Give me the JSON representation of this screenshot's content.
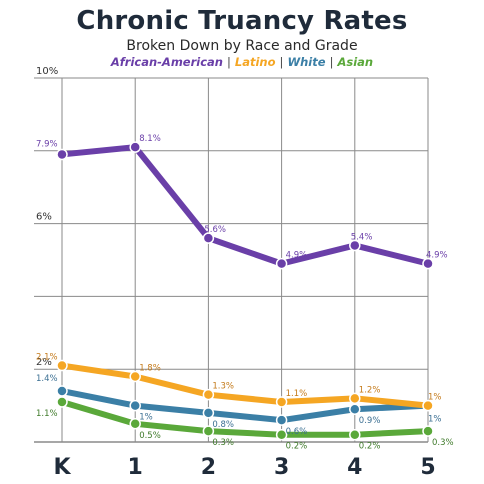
{
  "title": "Chronic Truancy Rates",
  "subtitle": "Broken Down by Race and Grade",
  "legend_separator": "|",
  "chart_data": {
    "type": "line",
    "title": "Chronic Truancy Rates",
    "subtitle": "Broken Down by Race and Grade",
    "categories": [
      "K",
      "1",
      "2",
      "3",
      "4",
      "5"
    ],
    "ylim": [
      0,
      10
    ],
    "y_ticks": [
      {
        "value": 2,
        "label": "2%"
      },
      {
        "value": 6,
        "label": "6%"
      },
      {
        "value": 10,
        "label": "10%"
      }
    ],
    "grid": true,
    "legend_placement": "top",
    "series": [
      {
        "name": "African-American",
        "color": "#6a3fa8",
        "values": [
          7.9,
          8.1,
          5.6,
          4.9,
          5.4,
          4.9
        ],
        "labels": [
          "7.9%",
          "8.1%",
          "5.6%",
          "4.9%",
          "5.4%",
          "4.9%"
        ]
      },
      {
        "name": "Latino",
        "color": "#f5a623",
        "values": [
          2.1,
          1.8,
          1.3,
          1.1,
          1.2,
          1.0
        ],
        "labels": [
          "2.1%",
          "1.8%",
          "1.3%",
          "1.1%",
          "1.2%",
          "1%"
        ]
      },
      {
        "name": "White",
        "color": "#3b7fa6",
        "values": [
          1.4,
          1.0,
          0.8,
          0.6,
          0.9,
          1.0
        ],
        "labels": [
          "1.4%",
          "1%",
          "0.8%",
          "0.6%",
          "0.9%",
          "1%"
        ]
      },
      {
        "name": "Asian",
        "color": "#5aa83a",
        "values": [
          1.1,
          0.5,
          0.3,
          0.2,
          0.2,
          0.3
        ],
        "labels": [
          "1.1%",
          "0.5%",
          "0.3%",
          "0.2%",
          "0.2%",
          "0.3%"
        ]
      }
    ]
  }
}
